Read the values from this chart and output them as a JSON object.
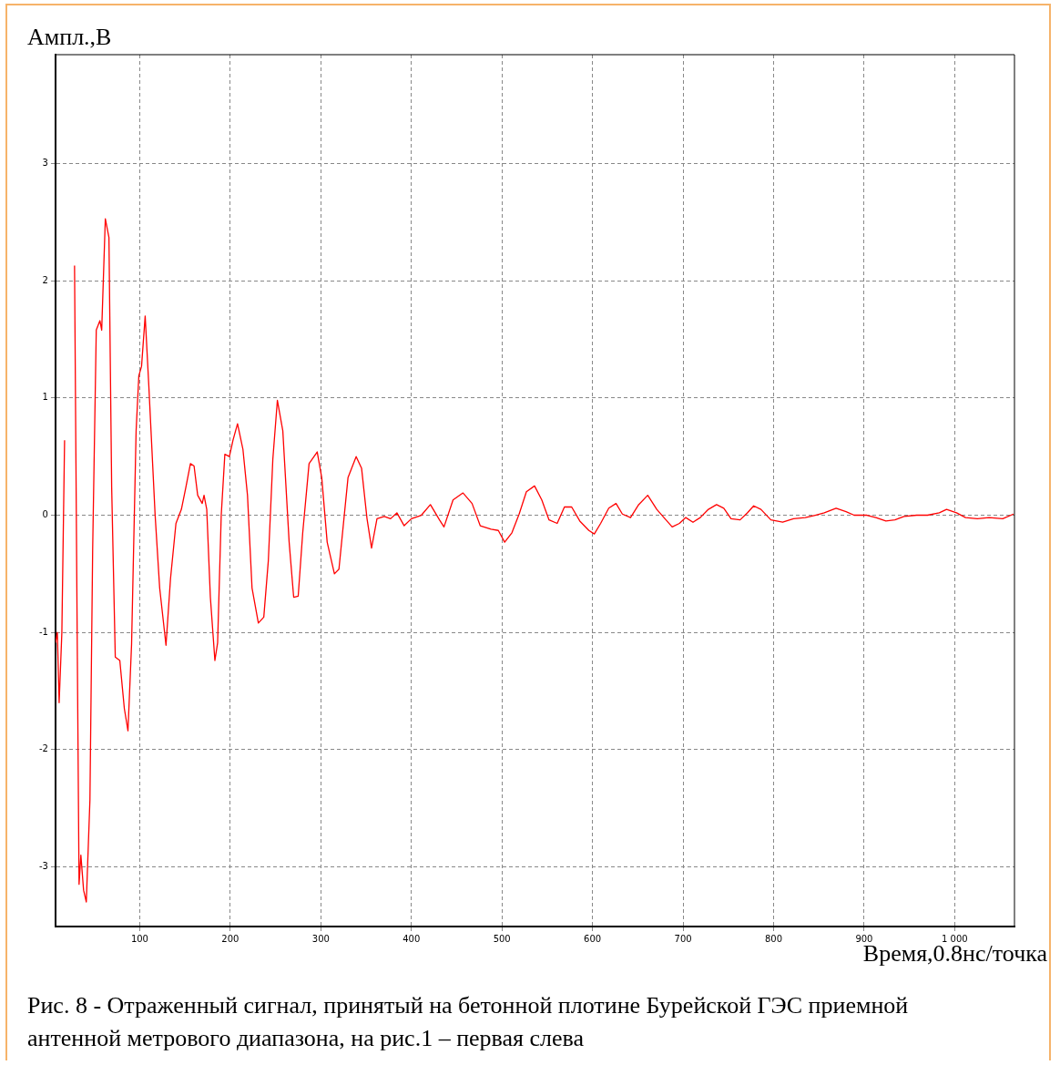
{
  "chart_data": {
    "type": "line",
    "xlabel": "Время,0.8нс/точка",
    "ylabel": "Ампл.,В",
    "annotations": [
      "Рис. 8 - Отраженный сигнал, принятый на бетонной плотине Бурейской ГЭС приемной антенной метрового диапазона, на рис.1 – первая слева"
    ],
    "xlim": [
      7,
      1066
    ],
    "ylim": [
      -3.51,
      3.93
    ],
    "xticks": [
      100,
      200,
      300,
      400,
      500,
      600,
      700,
      800,
      900,
      {
        "value": 1000,
        "label": "1 000"
      }
    ],
    "yticks": [
      -3,
      -2,
      -1,
      0,
      1,
      2,
      3
    ],
    "grid": true,
    "marker": "none",
    "line_style": "solid",
    "legend": false,
    "series": [
      {
        "color": "#ff0000",
        "x": [
          7,
          9,
          11,
          14,
          17,
          19,
          25,
          28,
          31,
          33,
          35,
          38,
          41,
          45,
          48,
          52,
          56,
          58,
          62,
          66,
          69,
          73,
          78,
          83,
          87,
          91,
          96,
          99,
          102,
          106,
          110,
          117,
          122,
          129,
          134,
          140,
          146,
          151,
          156,
          160,
          164,
          169,
          171,
          174,
          178,
          183,
          186,
          190,
          194,
          199,
          203,
          208,
          214,
          219,
          224,
          231,
          237,
          242,
          247,
          252,
          258,
          265,
          270,
          275,
          280,
          287,
          296,
          301,
          307,
          315,
          320,
          325,
          330,
          339,
          345,
          351,
          356,
          362,
          370,
          377,
          384,
          392,
          400,
          411,
          421,
          431,
          436,
          446,
          457,
          467,
          476,
          488,
          496,
          503,
          511,
          519,
          527,
          536,
          544,
          552,
          561,
          569,
          577,
          586,
          596,
          602,
          609,
          618,
          626,
          633,
          642,
          651,
          661,
          671,
          680,
          688,
          696,
          703,
          711,
          719,
          728,
          737,
          745,
          753,
          763,
          771,
          778,
          786,
          797,
          810,
          822,
          835,
          846,
          856,
          869,
          880,
          889,
          903,
          913,
          924,
          934,
          944,
          958,
          970,
          983,
          991,
          1002,
          1012,
          1025,
          1038,
          1053,
          1065
        ],
        "values": [
          -1.09,
          -1.0,
          -1.6,
          -1.0,
          0.64,
          null,
          null,
          2.13,
          -1.1,
          -3.15,
          -2.9,
          -3.2,
          -3.3,
          -2.43,
          -0.3,
          1.58,
          1.66,
          1.58,
          2.53,
          2.37,
          0.24,
          -1.21,
          -1.24,
          -1.65,
          -1.84,
          -1.1,
          0.72,
          1.19,
          1.27,
          1.7,
          1.11,
          0,
          -0.62,
          -1.11,
          -0.54,
          -0.07,
          0.05,
          0.24,
          0.44,
          0.42,
          0.17,
          0.1,
          0.17,
          0.05,
          -0.7,
          -1.24,
          -1.09,
          0,
          0.52,
          0.5,
          0.64,
          0.78,
          0.56,
          0.17,
          -0.62,
          -0.92,
          -0.87,
          -0.39,
          0.48,
          0.98,
          0.72,
          -0.23,
          -0.7,
          -0.69,
          -0.15,
          0.44,
          0.54,
          0.32,
          -0.23,
          -0.5,
          -0.46,
          -0.07,
          0.32,
          0.5,
          0.4,
          -0.03,
          -0.28,
          -0.03,
          -0.01,
          -0.03,
          0.02,
          -0.09,
          -0.03,
          0,
          0.09,
          -0.04,
          -0.1,
          0.13,
          0.19,
          0.1,
          -0.09,
          -0.12,
          -0.13,
          -0.23,
          -0.15,
          0.01,
          0.2,
          0.25,
          0.13,
          -0.04,
          -0.07,
          0.07,
          0.07,
          -0.05,
          -0.13,
          -0.16,
          -0.07,
          0.06,
          0.1,
          0.01,
          -0.02,
          0.09,
          0.17,
          0.05,
          -0.03,
          -0.1,
          -0.07,
          -0.02,
          -0.06,
          -0.02,
          0.05,
          0.09,
          0.06,
          -0.03,
          -0.04,
          0.02,
          0.08,
          0.05,
          -0.04,
          -0.06,
          -0.03,
          -0.02,
          0,
          0.02,
          0.06,
          0.03,
          0,
          0,
          -0.02,
          -0.05,
          -0.04,
          -0.01,
          0,
          0,
          0.02,
          0.05,
          0.02,
          -0.02,
          -0.03,
          -0.02,
          -0.03,
          0.01
        ]
      }
    ]
  }
}
